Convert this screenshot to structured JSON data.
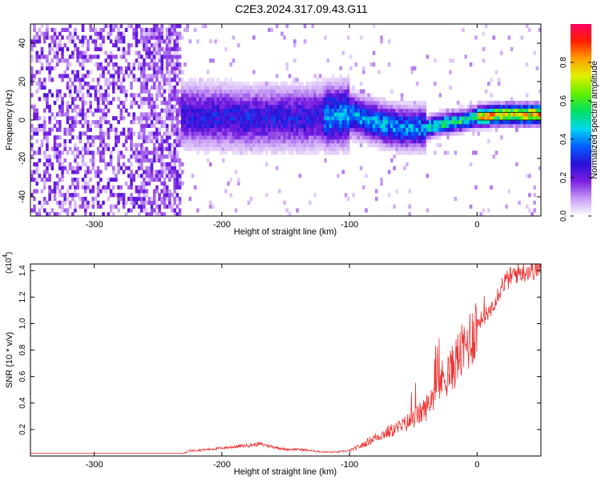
{
  "title": "C2E3.2024.317.09.43.G11",
  "chart_data": [
    {
      "type": "heatmap",
      "title": "C2E3.2024.317.09.43.G11",
      "xlabel": "Height of straight line (km)",
      "ylabel": "Frequency (Hz)",
      "xlim": [
        -350,
        50
      ],
      "ylim": [
        -50,
        50
      ],
      "x_ticks": [
        -300,
        -200,
        -100,
        0
      ],
      "y_ticks": [
        -40,
        -20,
        0,
        20,
        40
      ],
      "colorbar": {
        "label": "Normalized spectral amplitude",
        "range": [
          0,
          1
        ],
        "ticks": [
          0.0,
          0.2,
          0.4,
          0.6,
          0.8
        ],
        "colors": [
          "#ffffff",
          "#c79cf5",
          "#7a1fe0",
          "#2a10d8",
          "#0060ff",
          "#00d8f0",
          "#00e060",
          "#60f000",
          "#e0f000",
          "#ffa000",
          "#ff2000",
          "#ff0060"
        ]
      },
      "ridge": {
        "x": [
          -232,
          -220,
          -200,
          -180,
          -160,
          -140,
          -120,
          -100,
          -90,
          -80,
          -70,
          -60,
          -50,
          -40,
          -30,
          -20,
          -10,
          0,
          10,
          20,
          30,
          40,
          50
        ],
        "y": [
          2,
          1,
          1,
          0,
          0,
          0,
          1,
          2,
          0,
          -2,
          -4,
          -5,
          -5,
          -5,
          -3,
          -2,
          -1,
          1,
          1.5,
          2,
          2,
          2,
          2
        ]
      },
      "reference_lines_y": [
        4,
        0
      ]
    },
    {
      "type": "line",
      "xlabel": "Height of straight line (km)",
      "ylabel": "SNR (10 * v/v)",
      "y_multiplier": "(x10",
      "y_multiplier_exp": "4",
      "xlim": [
        -350,
        50
      ],
      "ylim": [
        0,
        1.45
      ],
      "x_ticks": [
        -300,
        -200,
        -100,
        0
      ],
      "y_ticks": [
        0.2,
        0.4,
        0.6,
        0.8,
        1.0,
        1.2,
        1.4
      ],
      "series": [
        {
          "color": "#ee3333",
          "x": [
            -350,
            -300,
            -250,
            -230,
            -225,
            -210,
            -200,
            -190,
            -180,
            -170,
            -160,
            -150,
            -140,
            -130,
            -120,
            -110,
            -100,
            -90,
            -80,
            -70,
            -60,
            -50,
            -40,
            -30,
            -25,
            -20,
            -15,
            -10,
            -5,
            0,
            10,
            20,
            30,
            40,
            50
          ],
          "y": [
            0.02,
            0.02,
            0.02,
            0.02,
            0.04,
            0.05,
            0.06,
            0.07,
            0.08,
            0.09,
            0.07,
            0.05,
            0.05,
            0.04,
            0.03,
            0.03,
            0.04,
            0.08,
            0.14,
            0.18,
            0.22,
            0.28,
            0.36,
            0.55,
            0.6,
            0.65,
            0.75,
            0.8,
            0.9,
            1.0,
            1.1,
            1.3,
            1.38,
            1.4,
            1.42
          ]
        }
      ]
    }
  ]
}
